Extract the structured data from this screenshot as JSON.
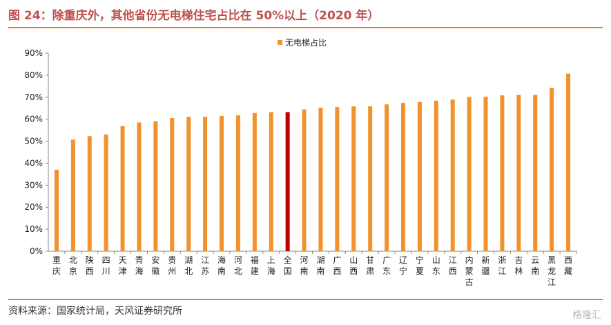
{
  "title": "图 24：除重庆外，其他省份无电梯住宅占比在 50%以上（2020 年）",
  "source": "资料来源：国家统计局，天风证券研究所",
  "watermark": "格隆汇",
  "colors": {
    "bar": "#f0922e",
    "highlight": "#c00000",
    "rule": "#e1812c",
    "title": "#c0504d"
  },
  "chart_data": {
    "type": "bar",
    "legend": {
      "label": "无电梯占比",
      "position": "top-center"
    },
    "categories": [
      "重庆",
      "北京",
      "陕西",
      "四川",
      "天津",
      "青海",
      "安徽",
      "贵州",
      "湖北",
      "江苏",
      "海南",
      "河北",
      "福建",
      "上海",
      "全国",
      "河南",
      "湖南",
      "广西",
      "山西",
      "甘肃",
      "广东",
      "辽宁",
      "宁夏",
      "山东",
      "江西",
      "内蒙古",
      "新疆",
      "浙江",
      "吉林",
      "云南",
      "黑龙江",
      "西藏"
    ],
    "values": [
      37,
      50.7,
      52.3,
      53,
      56.8,
      58.5,
      59,
      60.5,
      61,
      61,
      61.5,
      61.7,
      62.8,
      63.2,
      63.2,
      64.4,
      65.2,
      65.5,
      65.8,
      65.8,
      66.7,
      67.4,
      67.8,
      68.4,
      68.9,
      70.1,
      70.2,
      70.8,
      71,
      71,
      74.2,
      80.7
    ],
    "highlight_category": "全国",
    "ylim": [
      0,
      90
    ],
    "yticks": [
      "0%",
      "10%",
      "20%",
      "30%",
      "40%",
      "50%",
      "60%",
      "70%",
      "80%",
      "90%"
    ],
    "grid": false
  }
}
